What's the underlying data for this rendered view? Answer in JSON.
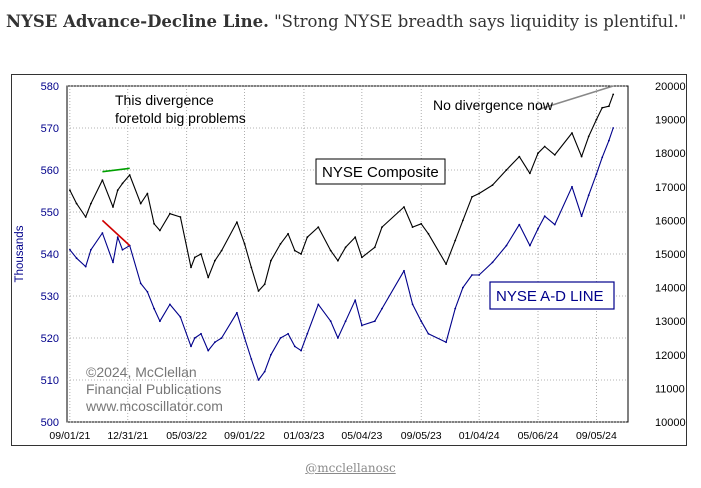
{
  "caption": {
    "title": "NYSE Advance-Decline Line.",
    "quote": "\"Strong NYSE breadth says liquidity is plentiful.\""
  },
  "credit": "@mcclellanosc",
  "chart_data": {
    "type": "line",
    "x_ticks": [
      "09/01/21",
      "12/31/21",
      "05/03/22",
      "09/01/22",
      "01/03/23",
      "05/04/23",
      "09/05/23",
      "01/04/24",
      "05/06/24",
      "09/05/24"
    ],
    "left_axis": {
      "label": "Thousands",
      "range": [
        500,
        580
      ],
      "ticks": [
        "580",
        "570",
        "560",
        "550",
        "540",
        "530",
        "520",
        "510",
        "500"
      ]
    },
    "right_axis": {
      "range": [
        10000,
        20000
      ],
      "ticks": [
        "20000",
        "19000",
        "18000",
        "17000",
        "16000",
        "15000",
        "14000",
        "13000",
        "12000",
        "11000",
        "10000"
      ]
    },
    "series": [
      {
        "name": "NYSE Composite",
        "axis": "right",
        "color": "#000000",
        "x": [
          "2021-09-01",
          "2021-09-15",
          "2021-10-04",
          "2021-10-15",
          "2021-11-08",
          "2021-11-30",
          "2021-12-10",
          "2021-12-20",
          "2022-01-04",
          "2022-01-27",
          "2022-02-10",
          "2022-02-24",
          "2022-03-08",
          "2022-03-29",
          "2022-04-20",
          "2022-05-12",
          "2022-05-20",
          "2022-06-02",
          "2022-06-17",
          "2022-07-01",
          "2022-07-15",
          "2022-08-16",
          "2022-09-01",
          "2022-09-15",
          "2022-09-30",
          "2022-10-13",
          "2022-10-26",
          "2022-11-15",
          "2022-12-01",
          "2022-12-15",
          "2022-12-28",
          "2023-01-10",
          "2023-02-02",
          "2023-02-28",
          "2023-03-15",
          "2023-03-31",
          "2023-04-20",
          "2023-05-04",
          "2023-05-31",
          "2023-06-15",
          "2023-07-31",
          "2023-08-18",
          "2023-09-05",
          "2023-09-20",
          "2023-10-27",
          "2023-11-15",
          "2023-12-01",
          "2023-12-20",
          "2024-01-04",
          "2024-02-01",
          "2024-03-01",
          "2024-03-28",
          "2024-04-19",
          "2024-05-06",
          "2024-05-20",
          "2024-06-10",
          "2024-07-16",
          "2024-08-05",
          "2024-08-20",
          "2024-09-05",
          "2024-09-17",
          "2024-10-01",
          "2024-10-10"
        ],
        "y": [
          16900,
          16500,
          16100,
          16500,
          17200,
          16400,
          16900,
          17100,
          17350,
          16500,
          16800,
          15900,
          15700,
          16200,
          16100,
          14600,
          14900,
          15000,
          14300,
          14800,
          15100,
          15950,
          15300,
          14600,
          13900,
          14100,
          14800,
          15300,
          15600,
          15100,
          15000,
          15500,
          15800,
          15100,
          14800,
          15200,
          15500,
          14900,
          15200,
          15800,
          16400,
          15800,
          15900,
          15600,
          14700,
          15400,
          16000,
          16700,
          16800,
          17050,
          17500,
          17900,
          17400,
          18000,
          18200,
          17950,
          18600,
          17900,
          18500,
          19000,
          19350,
          19400,
          19750
        ]
      },
      {
        "name": "NYSE A-D LINE",
        "axis": "left",
        "color": "#00008B",
        "x": [
          "2021-09-01",
          "2021-09-15",
          "2021-10-04",
          "2021-10-15",
          "2021-11-08",
          "2021-11-30",
          "2021-12-10",
          "2021-12-20",
          "2022-01-04",
          "2022-01-27",
          "2022-02-10",
          "2022-02-24",
          "2022-03-08",
          "2022-03-29",
          "2022-04-20",
          "2022-05-12",
          "2022-05-20",
          "2022-06-02",
          "2022-06-17",
          "2022-07-01",
          "2022-07-15",
          "2022-08-16",
          "2022-09-01",
          "2022-09-15",
          "2022-09-30",
          "2022-10-13",
          "2022-10-26",
          "2022-11-15",
          "2022-12-01",
          "2022-12-15",
          "2022-12-28",
          "2023-01-10",
          "2023-02-02",
          "2023-02-28",
          "2023-03-15",
          "2023-03-31",
          "2023-04-20",
          "2023-05-04",
          "2023-05-31",
          "2023-06-15",
          "2023-07-31",
          "2023-08-18",
          "2023-09-05",
          "2023-09-20",
          "2023-10-27",
          "2023-11-15",
          "2023-12-01",
          "2023-12-20",
          "2024-01-04",
          "2024-02-01",
          "2024-03-01",
          "2024-03-28",
          "2024-04-19",
          "2024-05-06",
          "2024-05-20",
          "2024-06-10",
          "2024-07-16",
          "2024-08-05",
          "2024-08-20",
          "2024-09-05",
          "2024-09-17",
          "2024-10-01",
          "2024-10-10"
        ],
        "y": [
          541,
          539,
          537,
          541,
          545,
          538,
          544,
          541,
          542,
          533,
          531,
          527,
          524,
          528,
          525,
          518,
          520,
          521,
          517,
          519,
          520,
          526,
          520,
          515,
          510,
          512,
          516,
          520,
          521,
          518,
          517,
          521,
          528,
          524,
          520,
          524,
          529,
          523,
          524,
          527,
          536,
          528,
          524,
          521,
          519,
          527,
          532,
          535,
          535,
          538,
          542,
          547,
          542,
          546,
          549,
          547,
          556,
          549,
          554,
          559,
          563,
          567,
          570
        ]
      }
    ],
    "labels": {
      "composite": "NYSE Composite",
      "adline": "NYSE A-D LINE",
      "divergence": [
        "This divergence",
        "foretold big problems"
      ],
      "no_divergence": "No divergence now",
      "copyright": [
        "©2024, McClellan",
        "Financial Publications",
        "www.mcoscillator.com"
      ]
    },
    "annotations": [
      {
        "type": "divergence-line",
        "series": "NYSE Composite",
        "color": "#00A000",
        "x": [
          "2021-11-08",
          "2022-01-04"
        ],
        "y": [
          17450,
          17550
        ]
      },
      {
        "type": "divergence-line",
        "series": "NYSE A-D LINE",
        "color": "#D00000",
        "x": [
          "2021-11-08",
          "2022-01-04"
        ],
        "y": [
          548,
          542
        ]
      },
      {
        "type": "trend-line",
        "series": "NYSE Composite",
        "color": "#888888",
        "x": [
          "2024-05-06",
          "2024-10-10"
        ],
        "y": [
          19300,
          20000
        ]
      }
    ],
    "grid": true
  }
}
